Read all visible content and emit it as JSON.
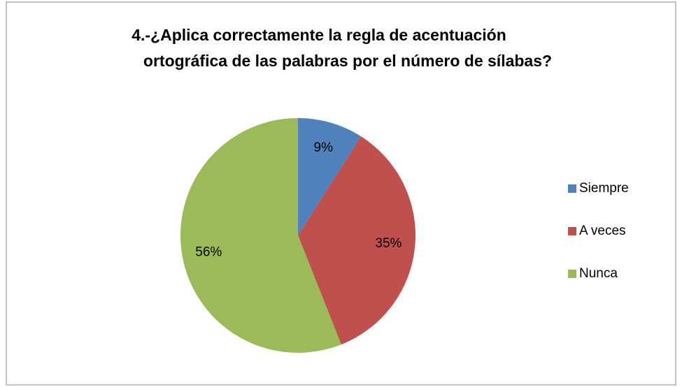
{
  "chart_data": {
    "type": "pie",
    "title": [
      "4.-¿Aplica correctamente la regla de acentuación",
      "ortográfica de las palabras por el número de sílabas?"
    ],
    "categories": [
      "Siempre",
      "A veces",
      "Nunca"
    ],
    "values": [
      9,
      35,
      56
    ],
    "value_labels": [
      "9%",
      "35%",
      "56%"
    ],
    "colors": [
      "#4f81bd",
      "#c0504d",
      "#9bbb59"
    ],
    "legend": "right"
  }
}
